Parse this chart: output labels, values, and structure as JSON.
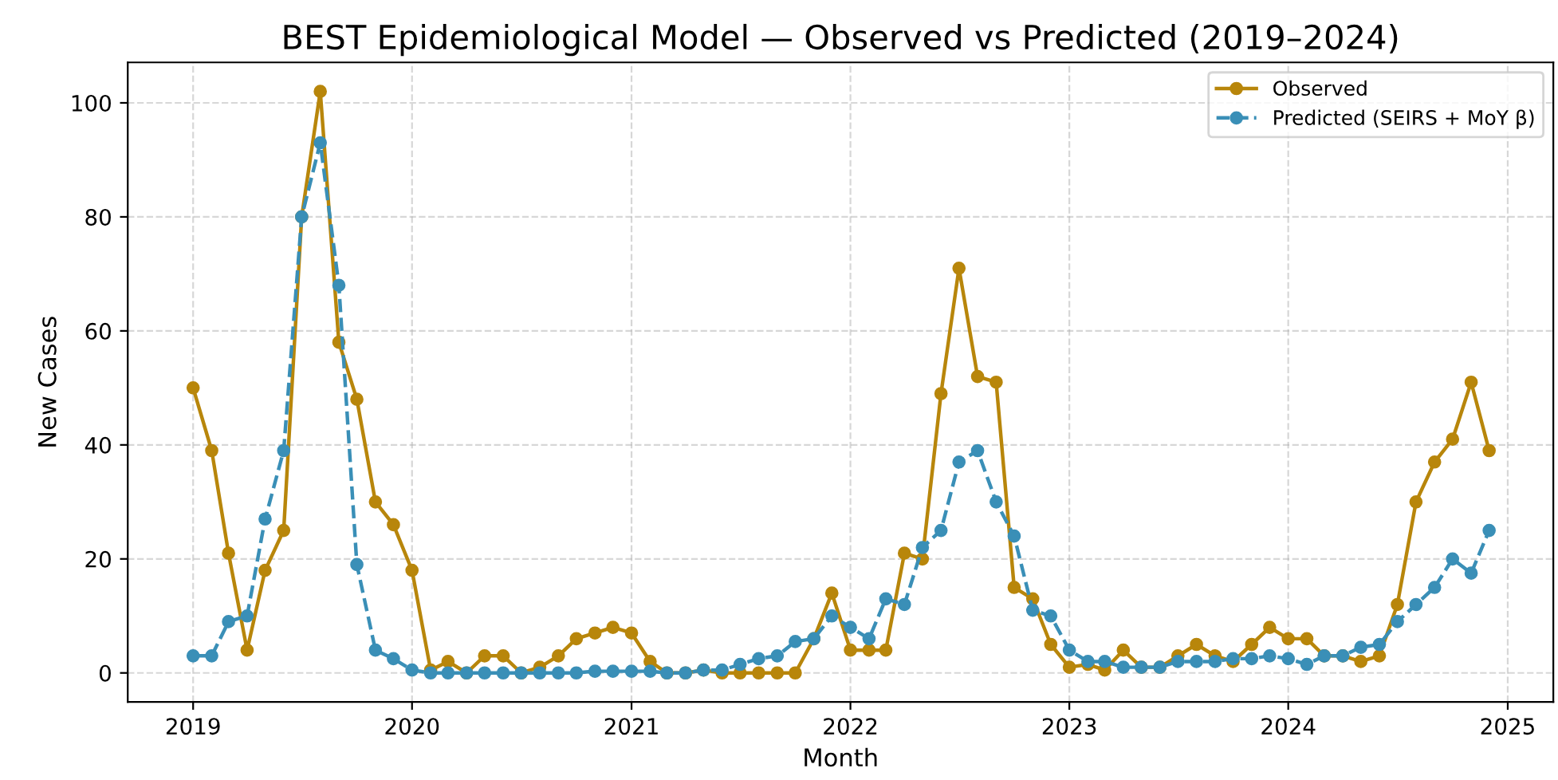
{
  "chart_data": {
    "type": "line",
    "title": "BEST Epidemiological Model — Observed vs Predicted (2019–2024)",
    "xlabel": "Month",
    "ylabel": "New Cases",
    "x": [
      "2019-01",
      "2019-02",
      "2019-03",
      "2019-04",
      "2019-05",
      "2019-06",
      "2019-07",
      "2019-08",
      "2019-09",
      "2019-10",
      "2019-11",
      "2019-12",
      "2020-01",
      "2020-02",
      "2020-03",
      "2020-04",
      "2020-05",
      "2020-06",
      "2020-07",
      "2020-08",
      "2020-09",
      "2020-10",
      "2020-11",
      "2020-12",
      "2021-01",
      "2021-02",
      "2021-03",
      "2021-04",
      "2021-05",
      "2021-06",
      "2021-07",
      "2021-08",
      "2021-09",
      "2021-10",
      "2021-11",
      "2021-12",
      "2022-01",
      "2022-02",
      "2022-03",
      "2022-04",
      "2022-05",
      "2022-06",
      "2022-07",
      "2022-08",
      "2022-09",
      "2022-10",
      "2022-11",
      "2022-12",
      "2023-01",
      "2023-02",
      "2023-03",
      "2023-04",
      "2023-05",
      "2023-06",
      "2023-07",
      "2023-08",
      "2023-09",
      "2023-10",
      "2023-11",
      "2023-12",
      "2024-01",
      "2024-02",
      "2024-03",
      "2024-04",
      "2024-05",
      "2024-06",
      "2024-07",
      "2024-08",
      "2024-09",
      "2024-10",
      "2024-11",
      "2024-12"
    ],
    "series": [
      {
        "name": "Observed",
        "color": "#b8860b",
        "line_style": "solid",
        "values": [
          50,
          39,
          21,
          4,
          18,
          25,
          80,
          102,
          58,
          48,
          30,
          26,
          18,
          0.5,
          2,
          0,
          3,
          3,
          0,
          1,
          3,
          6,
          7,
          8,
          7,
          2,
          0,
          0,
          0.5,
          0,
          0,
          0,
          0,
          0,
          6,
          14,
          4,
          4,
          4,
          21,
          20,
          49,
          71,
          52,
          51,
          15,
          13,
          5,
          1,
          1.5,
          0.5,
          4,
          1,
          1,
          3,
          5,
          3,
          2,
          5,
          8,
          6,
          6,
          3,
          3,
          2,
          3,
          12,
          30,
          37,
          41,
          51,
          39
        ]
      },
      {
        "name": "Predicted (SEIRS + MoY β)",
        "color": "#3a8fb7",
        "line_style": "dashed",
        "values": [
          3,
          3,
          9,
          10,
          27,
          39,
          80,
          93,
          68,
          19,
          4,
          2.5,
          0.5,
          0,
          0,
          0,
          0,
          0,
          0,
          0,
          0,
          0,
          0.3,
          0.3,
          0.3,
          0.3,
          0,
          0,
          0.5,
          0.5,
          1.5,
          2.5,
          3,
          5.5,
          6,
          10,
          8,
          6,
          13,
          12,
          22,
          25,
          37,
          39,
          30,
          24,
          11,
          10,
          4,
          2,
          2,
          1,
          1,
          1,
          2,
          2,
          2,
          2.5,
          2.5,
          3,
          2.5,
          1.5,
          3,
          3,
          4.5,
          5,
          9,
          12,
          15,
          20,
          17.5,
          25
        ]
      }
    ],
    "xlim": [
      "2018-09-14",
      "2025-03-18"
    ],
    "xticks": [
      {
        "value": "2019-01-01",
        "label": "2019"
      },
      {
        "value": "2020-01-01",
        "label": "2020"
      },
      {
        "value": "2021-01-01",
        "label": "2021"
      },
      {
        "value": "2022-01-01",
        "label": "2022"
      },
      {
        "value": "2023-01-01",
        "label": "2023"
      },
      {
        "value": "2024-01-01",
        "label": "2024"
      },
      {
        "value": "2025-01-01",
        "label": "2025"
      }
    ],
    "ylim": [
      -5.1,
      107.1
    ],
    "yticks": [
      0,
      20,
      40,
      60,
      80,
      100
    ],
    "grid": true,
    "legend": "top right",
    "marker": "circle"
  }
}
